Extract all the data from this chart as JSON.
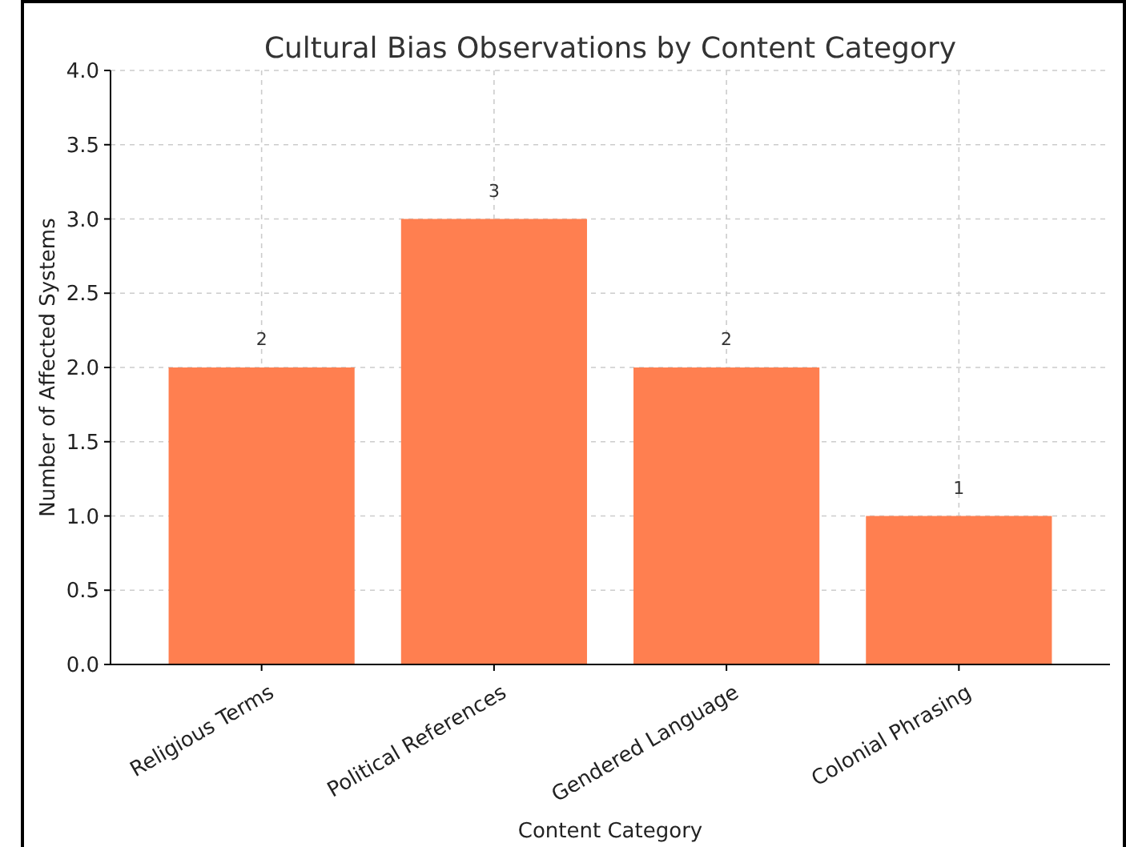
{
  "chart_data": {
    "type": "bar",
    "title": "Cultural Bias Observations by Content Category",
    "xlabel": "Content Category",
    "ylabel": "Number of Affected Systems",
    "categories": [
      "Religious Terms",
      "Political References",
      "Gendered Language",
      "Colonial Phrasing"
    ],
    "values": [
      2,
      3,
      2,
      1
    ],
    "color": "#ff7f50",
    "ylim": [
      0,
      4
    ],
    "yticks": [
      {
        "value": 0,
        "label": "0.0"
      },
      {
        "value": 0.5,
        "label": "0.5"
      },
      {
        "value": 1,
        "label": "1.0"
      },
      {
        "value": 1.5,
        "label": "1.5"
      },
      {
        "value": 2,
        "label": "2.0"
      },
      {
        "value": 2.5,
        "label": "2.5"
      },
      {
        "value": 3,
        "label": "3.0"
      },
      {
        "value": 3.5,
        "label": "3.5"
      },
      {
        "value": 4,
        "label": "4.0"
      }
    ],
    "grid": true,
    "data_labels": true
  }
}
